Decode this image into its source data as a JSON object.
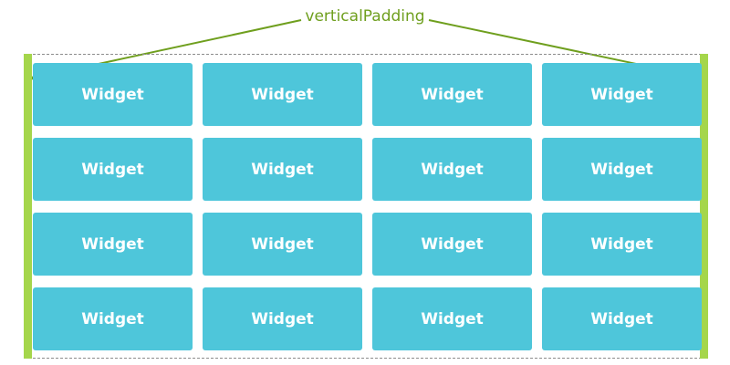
{
  "annotation": {
    "label": "verticalPadding",
    "color": "#6f9f1e",
    "padding_color": "#a5d64b"
  },
  "grid": {
    "rows": 4,
    "columns": 4,
    "widget_color": "#4ec6da",
    "widgets": [
      {
        "label": "Widget"
      },
      {
        "label": "Widget"
      },
      {
        "label": "Widget"
      },
      {
        "label": "Widget"
      },
      {
        "label": "Widget"
      },
      {
        "label": "Widget"
      },
      {
        "label": "Widget"
      },
      {
        "label": "Widget"
      },
      {
        "label": "Widget"
      },
      {
        "label": "Widget"
      },
      {
        "label": "Widget"
      },
      {
        "label": "Widget"
      },
      {
        "label": "Widget"
      },
      {
        "label": "Widget"
      },
      {
        "label": "Widget"
      },
      {
        "label": "Widget"
      }
    ]
  }
}
